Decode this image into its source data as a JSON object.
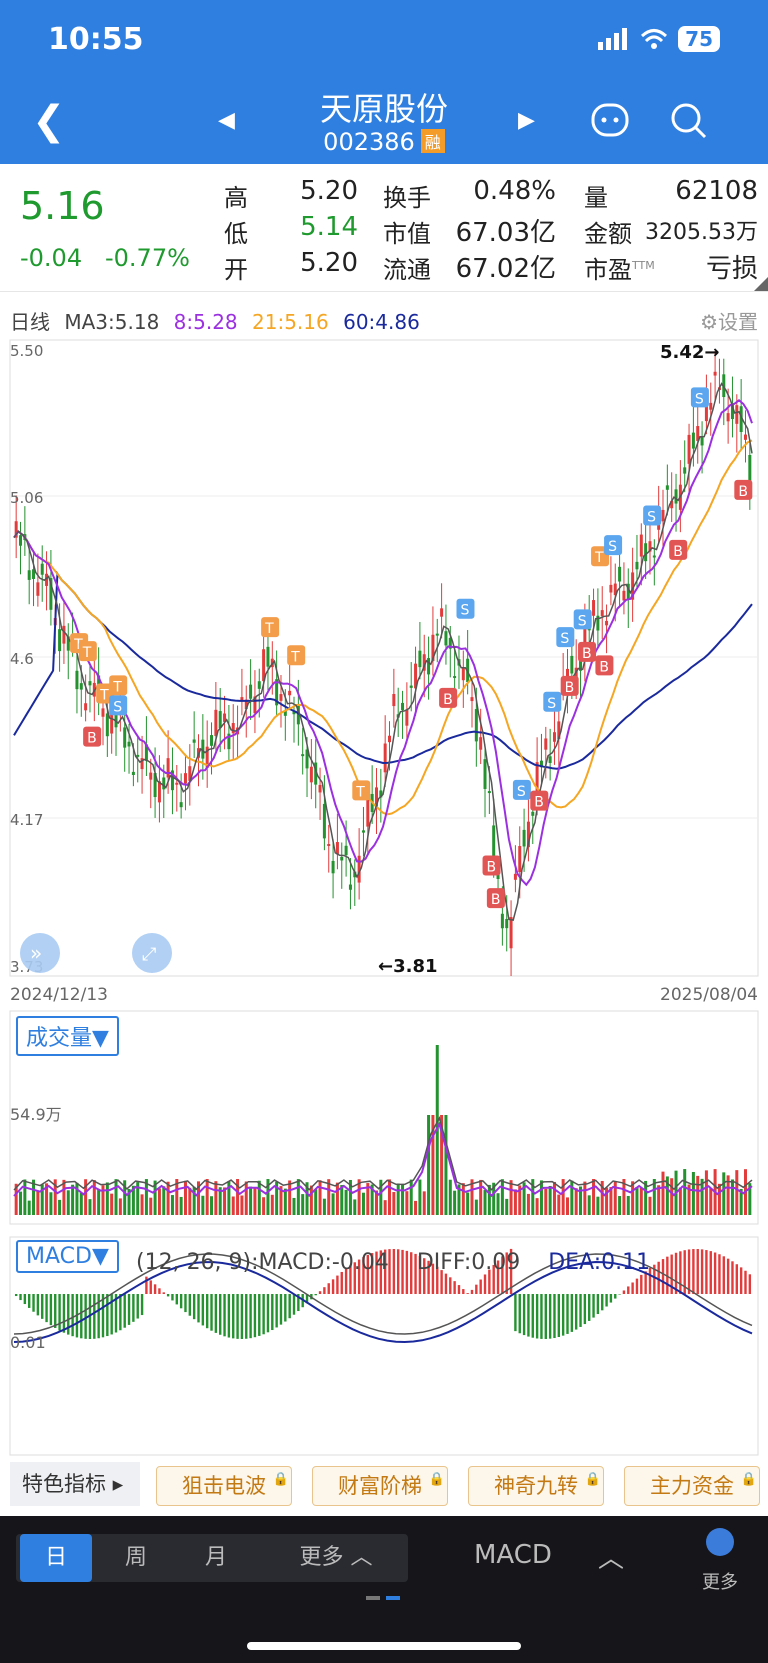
{
  "status": {
    "time": "10:55",
    "battery": "75"
  },
  "header": {
    "title": "天原股份",
    "code": "002386",
    "badge": "融"
  },
  "quote": {
    "price": "5.16",
    "change": "-0.04",
    "change_pct": "-0.77%",
    "high_label": "高",
    "high": "5.20",
    "low_label": "低",
    "low": "5.14",
    "open_label": "开",
    "open": "5.20",
    "turnover_label": "换手",
    "turnover": "0.48%",
    "mktcap_label": "市值",
    "mktcap": "67.03亿",
    "float_label": "流通",
    "float": "67.02亿",
    "vol_label": "量",
    "vol": "62108",
    "amount_label": "金额",
    "amount": "3205.53万",
    "pe_label": "市盈",
    "pe_sup": "TTM",
    "pe": "亏损"
  },
  "ma_legend": {
    "period": "日线",
    "ma3": "MA3:5.18",
    "ma8": "8:5.28",
    "ma21": "21:5.16",
    "ma60": "60:4.86",
    "settings": "设置"
  },
  "chart": {
    "y_labels": [
      "5.50",
      "5.06",
      "4.6",
      "4.17",
      "3.73"
    ],
    "max_label": "5.42→",
    "min_label": "←3.81",
    "start_date": "2024/12/13",
    "end_date": "2025/08/04",
    "colors": {
      "up": "#e23b3b",
      "down": "#23922f",
      "ma3": "#555555",
      "ma8": "#9b30e0",
      "ma21": "#f5a623",
      "ma60": "#1a2a9c"
    }
  },
  "volume_panel": {
    "button": "成交量▼",
    "y_label": "54.9万"
  },
  "macd_panel": {
    "button": "MACD▼",
    "params": "(12, 26, 9):MACD:-0.04",
    "diff": "DIFF:0.09",
    "dea": "DEA:0.11",
    "y_label": "0.01"
  },
  "features": {
    "label": "特色指标 ▸",
    "items": [
      "狙击电波",
      "财富阶梯",
      "神奇九转",
      "主力资金"
    ]
  },
  "bottom": {
    "tabs": [
      "日",
      "周",
      "月",
      "更多 ︿"
    ],
    "indicator": "MACD",
    "more": "更多"
  }
}
